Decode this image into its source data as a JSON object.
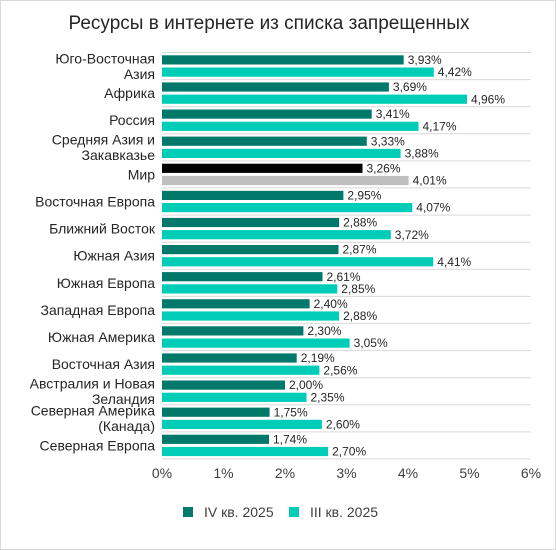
{
  "chart_data": {
    "type": "bar",
    "orientation": "horizontal",
    "title": "Ресурсы в интернете из списка запрещенных",
    "xlabel": "",
    "ylabel": "",
    "xlim": [
      0,
      6
    ],
    "x_ticks": [
      "0%",
      "1%",
      "2%",
      "3%",
      "4%",
      "5%",
      "6%"
    ],
    "grid": "horizontal separators between categories",
    "legend_position": "bottom",
    "categories": [
      [
        "Юго-Восточная",
        "Азия"
      ],
      [
        "Африка"
      ],
      [
        "Россия"
      ],
      [
        "Средняя Азия и",
        "Закавказье"
      ],
      [
        "Мир"
      ],
      [
        "Восточная Европа"
      ],
      [
        "Ближний Восток"
      ],
      [
        "Южная Азия"
      ],
      [
        "Южная Европа"
      ],
      [
        "Западная Европа"
      ],
      [
        "Южная Америка"
      ],
      [
        "Восточная Азия"
      ],
      [
        "Австралия и Новая",
        "Зеландия"
      ],
      [
        "Северная Америка",
        "(Канада)"
      ],
      [
        "Северная Европа"
      ]
    ],
    "series": [
      {
        "name": "IV кв. 2025",
        "color": "#00796b",
        "values": [
          3.93,
          3.69,
          3.41,
          3.33,
          3.26,
          2.95,
          2.88,
          2.87,
          2.61,
          2.4,
          2.3,
          2.19,
          2.0,
          1.75,
          1.74
        ],
        "labels": [
          "3,93%",
          "3,69%",
          "3,41%",
          "3,33%",
          "3,26%",
          "2,95%",
          "2,88%",
          "2,87%",
          "2,61%",
          "2,40%",
          "2,30%",
          "2,19%",
          "2,00%",
          "1,75%",
          "1,74%"
        ]
      },
      {
        "name": "III кв. 2025",
        "color": "#00cdb8",
        "values": [
          4.42,
          4.96,
          4.17,
          3.88,
          4.01,
          4.07,
          3.72,
          4.41,
          2.85,
          2.88,
          3.05,
          2.56,
          2.35,
          2.6,
          2.7
        ],
        "labels": [
          "4,42%",
          "4,96%",
          "4,17%",
          "3,88%",
          "4,01%",
          "4,07%",
          "3,72%",
          "4,41%",
          "2,85%",
          "2,88%",
          "3,05%",
          "2,56%",
          "2,35%",
          "2,60%",
          "2,70%"
        ]
      }
    ],
    "highlight": {
      "category_index": 4,
      "colors": [
        "#000000",
        "#bfbfbf"
      ]
    }
  }
}
